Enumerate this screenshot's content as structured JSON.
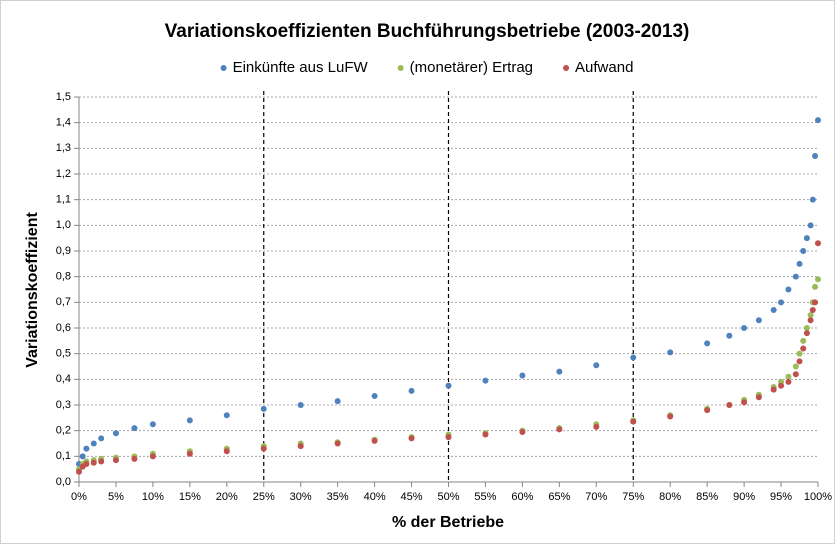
{
  "chart_data": {
    "type": "scatter",
    "title": "Variationskoeffizienten Buchführungsbetriebe (2003-2013)",
    "xlabel": "% der Betriebe",
    "ylabel": "Variationskoeffizient",
    "x": [
      0,
      0.5,
      1,
      2,
      3,
      5,
      7.5,
      10,
      15,
      20,
      25,
      30,
      35,
      40,
      45,
      50,
      55,
      60,
      65,
      70,
      75,
      80,
      85,
      88,
      90,
      92,
      94,
      95,
      96,
      97,
      97.5,
      98,
      98.5,
      99,
      99.3,
      99.6,
      100
    ],
    "series": [
      {
        "name": "Einkünfte aus LuFW",
        "color": "#4f81bd",
        "values": [
          0.07,
          0.1,
          0.13,
          0.15,
          0.17,
          0.19,
          0.21,
          0.225,
          0.24,
          0.26,
          0.285,
          0.3,
          0.315,
          0.335,
          0.355,
          0.375,
          0.395,
          0.415,
          0.43,
          0.455,
          0.485,
          0.505,
          0.54,
          0.57,
          0.6,
          0.63,
          0.67,
          0.7,
          0.75,
          0.8,
          0.85,
          0.9,
          0.95,
          1.0,
          1.1,
          1.27,
          1.41
        ]
      },
      {
        "name": "(monetärer) Ertrag",
        "color": "#9bbb59",
        "values": [
          0.05,
          0.07,
          0.08,
          0.085,
          0.09,
          0.095,
          0.1,
          0.11,
          0.12,
          0.13,
          0.14,
          0.15,
          0.155,
          0.165,
          0.175,
          0.185,
          0.19,
          0.2,
          0.21,
          0.225,
          0.24,
          0.26,
          0.285,
          0.3,
          0.32,
          0.34,
          0.37,
          0.39,
          0.41,
          0.45,
          0.5,
          0.55,
          0.6,
          0.65,
          0.7,
          0.76,
          0.79
        ]
      },
      {
        "name": "Aufwand",
        "color": "#c0504d",
        "values": [
          0.04,
          0.06,
          0.07,
          0.075,
          0.08,
          0.085,
          0.09,
          0.1,
          0.11,
          0.12,
          0.13,
          0.14,
          0.15,
          0.16,
          0.17,
          0.175,
          0.185,
          0.195,
          0.205,
          0.215,
          0.235,
          0.255,
          0.28,
          0.3,
          0.31,
          0.33,
          0.36,
          0.375,
          0.39,
          0.42,
          0.47,
          0.52,
          0.58,
          0.63,
          0.67,
          0.7,
          0.93
        ]
      }
    ],
    "xlim": [
      0,
      100
    ],
    "ylim": [
      0,
      1.5
    ],
    "xticks": [
      {
        "value": 0,
        "label": "0%"
      },
      {
        "value": 5,
        "label": "5%"
      },
      {
        "value": 10,
        "label": "10%"
      },
      {
        "value": 15,
        "label": "15%"
      },
      {
        "value": 20,
        "label": "20%"
      },
      {
        "value": 25,
        "label": "25%"
      },
      {
        "value": 30,
        "label": "30%"
      },
      {
        "value": 35,
        "label": "35%"
      },
      {
        "value": 40,
        "label": "40%"
      },
      {
        "value": 45,
        "label": "45%"
      },
      {
        "value": 50,
        "label": "50%"
      },
      {
        "value": 55,
        "label": "55%"
      },
      {
        "value": 60,
        "label": "60%"
      },
      {
        "value": 65,
        "label": "65%"
      },
      {
        "value": 70,
        "label": "70%"
      },
      {
        "value": 75,
        "label": "75%"
      },
      {
        "value": 80,
        "label": "80%"
      },
      {
        "value": 85,
        "label": "85%"
      },
      {
        "value": 90,
        "label": "90%"
      },
      {
        "value": 95,
        "label": "95%"
      },
      {
        "value": 100,
        "label": "100%"
      }
    ],
    "yticks": [
      {
        "value": 0,
        "label": "0,0"
      },
      {
        "value": 0.1,
        "label": "0,1"
      },
      {
        "value": 0.2,
        "label": "0,2"
      },
      {
        "value": 0.3,
        "label": "0,3"
      },
      {
        "value": 0.4,
        "label": "0,4"
      },
      {
        "value": 0.5,
        "label": "0,5"
      },
      {
        "value": 0.6,
        "label": "0,6"
      },
      {
        "value": 0.7,
        "label": "0,7"
      },
      {
        "value": 0.8,
        "label": "0,8"
      },
      {
        "value": 0.9,
        "label": "0,9"
      },
      {
        "value": 1.0,
        "label": "1,0"
      },
      {
        "value": 1.1,
        "label": "1,1"
      },
      {
        "value": 1.2,
        "label": "1,2"
      },
      {
        "value": 1.3,
        "label": "1,3"
      },
      {
        "value": 1.4,
        "label": "1,4"
      },
      {
        "value": 1.5,
        "label": "1,5"
      }
    ],
    "vlines": [
      25,
      50,
      75
    ],
    "grid": true,
    "legend": "top"
  }
}
